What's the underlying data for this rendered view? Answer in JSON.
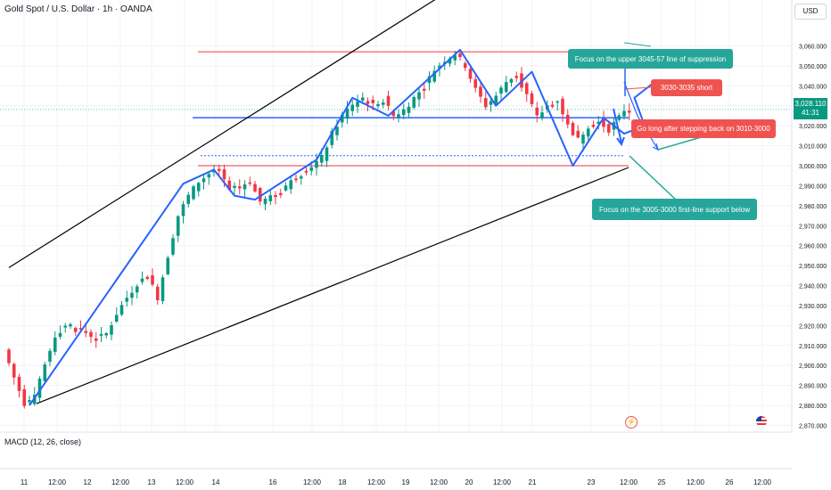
{
  "header": {
    "title": "Gold Spot / U.S. Dollar · 1h · OANDA",
    "currency_button": "USD"
  },
  "indicator": {
    "label": "MACD (12, 26, close)"
  },
  "price_badge": {
    "price": "3,028.110",
    "countdown": "41:31"
  },
  "notes": {
    "upper": "Focus on the upper 3045-57 line of suppression",
    "short": "3030-3035 short",
    "long": "Go long after stepping back on 3010-3000",
    "support": "Focus on the 3005-3000 first-line support below"
  },
  "icons": {
    "flash": "flash-icon",
    "flag": "us-flag-icon"
  },
  "colors": {
    "up": "#089981",
    "down": "#f23645",
    "trendline": "#2962ff",
    "resistance": "#f23645",
    "channel": "#000000",
    "note_teal": "#26a69a",
    "note_red": "#ef5350"
  },
  "chart_data": {
    "type": "candlestick",
    "symbol": "XAUUSD",
    "timeframe": "1h",
    "y_ticks": [
      2870,
      2880,
      2890,
      2900,
      2910,
      2920,
      2930,
      2940,
      2950,
      2960,
      2970,
      2980,
      2990,
      3000,
      3010,
      3020,
      3030,
      3040,
      3050,
      3060
    ],
    "y_tick_labels": [
      "2,870.000",
      "2,880.000",
      "2,890.000",
      "2,900.000",
      "2,910.000",
      "2,920.000",
      "2,930.000",
      "2,940.000",
      "2,950.000",
      "2,960.000",
      "2,970.000",
      "2,980.000",
      "2,990.000",
      "3,000.000",
      "3,010.000",
      "3,020.000",
      "3,030.000",
      "3,040.000",
      "3,050.000",
      "3,060.000"
    ],
    "x_ticks": [
      "11",
      "12:00",
      "12",
      "12:00",
      "13",
      "12:00",
      "14",
      "16",
      "12:00",
      "18",
      "12:00",
      "19",
      "12:00",
      "20",
      "12:00",
      "21",
      "23",
      "12:00",
      "25",
      "12:00",
      "26",
      "12:00"
    ],
    "ylim": [
      2865,
      3075
    ],
    "last_price": 3028.11,
    "close_path": [
      [
        0,
        2908
      ],
      [
        2,
        2894
      ],
      [
        4,
        2881
      ],
      [
        6,
        2884
      ],
      [
        8,
        2900
      ],
      [
        10,
        2915
      ],
      [
        12,
        2920
      ],
      [
        14,
        2918
      ],
      [
        16,
        2917
      ],
      [
        18,
        2913
      ],
      [
        20,
        2916
      ],
      [
        22,
        2926
      ],
      [
        24,
        2934
      ],
      [
        26,
        2941
      ],
      [
        28,
        2945
      ],
      [
        30,
        2934
      ],
      [
        32,
        2955
      ],
      [
        34,
        2975
      ],
      [
        36,
        2985
      ],
      [
        38,
        2992
      ],
      [
        40,
        2996
      ],
      [
        42,
        2997
      ],
      [
        44,
        2987
      ],
      [
        46,
        2990
      ],
      [
        48,
        2992
      ],
      [
        50,
        2982
      ],
      [
        52,
        2984
      ],
      [
        54,
        2988
      ],
      [
        56,
        2992
      ],
      [
        58,
        2996
      ],
      [
        60,
        3000
      ],
      [
        62,
        3004
      ],
      [
        64,
        3016
      ],
      [
        66,
        3025
      ],
      [
        68,
        3031
      ],
      [
        70,
        3034
      ],
      [
        72,
        3030
      ],
      [
        74,
        3033
      ],
      [
        76,
        3025
      ],
      [
        78,
        3028
      ],
      [
        80,
        3034
      ],
      [
        82,
        3040
      ],
      [
        84,
        3048
      ],
      [
        86,
        3053
      ],
      [
        88,
        3056
      ],
      [
        90,
        3050
      ],
      [
        92,
        3038
      ],
      [
        94,
        3030
      ],
      [
        96,
        3035
      ],
      [
        98,
        3042
      ],
      [
        100,
        3046
      ],
      [
        102,
        3035
      ],
      [
        104,
        3024
      ],
      [
        106,
        3030
      ],
      [
        108,
        3033
      ],
      [
        110,
        3020
      ],
      [
        112,
        3013
      ],
      [
        114,
        3020
      ],
      [
        116,
        3022
      ],
      [
        118,
        3018
      ],
      [
        120,
        3024
      ],
      [
        121,
        3028
      ]
    ],
    "levels": [
      {
        "name": "resistance",
        "value": 3057
      },
      {
        "name": "pivot",
        "value": 3024
      },
      {
        "name": "dotted",
        "value": 3005
      },
      {
        "name": "support",
        "value": 3000
      }
    ],
    "channel": {
      "upper": [
        [
          0,
          2949
        ],
        [
          88,
          3091
        ]
      ],
      "lower": [
        [
          4,
          2880
        ],
        [
          128,
          2994
        ]
      ]
    },
    "projection_path": [
      [
        4,
        2880
      ],
      [
        34,
        2991
      ],
      [
        40,
        2998
      ],
      [
        44,
        2985
      ],
      [
        48,
        2983
      ],
      [
        60,
        3003
      ],
      [
        67,
        3034
      ],
      [
        74,
        3025
      ],
      [
        88,
        3058
      ],
      [
        95,
        3030
      ],
      [
        102,
        3047
      ],
      [
        110,
        3000
      ],
      [
        116,
        3024
      ],
      [
        120,
        3016
      ],
      [
        124,
        3020
      ],
      [
        122,
        3034
      ],
      [
        126,
        3042
      ]
    ]
  }
}
